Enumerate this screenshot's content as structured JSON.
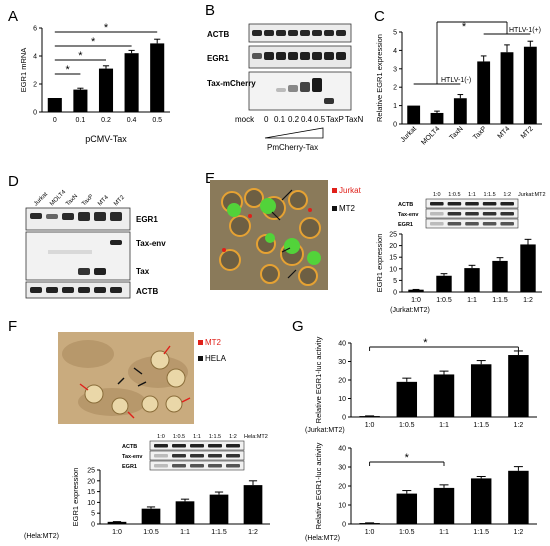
{
  "figure": {
    "panel_labels": [
      "A",
      "B",
      "C",
      "D",
      "E",
      "F",
      "G"
    ],
    "significance_marker": "*"
  },
  "panel_b": {
    "blot_rows": [
      "ACTB",
      "EGR1",
      "Tax-mCherry"
    ],
    "lanes": [
      "mock",
      "0",
      "0.1",
      "0.2",
      "0.4",
      "0.5",
      "TaxP",
      "TaxN"
    ],
    "xlabel": "PmCherry-Tax"
  },
  "panel_d": {
    "lanes": [
      "Jurkat",
      "MOLT4",
      "TaxN",
      "TaxP",
      "MT4",
      "MT2"
    ],
    "blot_rows": [
      "EGR1",
      "Tax-env",
      "Tax",
      "ACTB"
    ]
  },
  "panel_e": {
    "legend": [
      {
        "label": "Jurkat",
        "color": "#e0201a"
      },
      {
        "label": "MT2",
        "color": "#111111"
      }
    ],
    "inset_header": [
      "1:0",
      "1:0.5",
      "1:1",
      "1:1.5",
      "1:2",
      "Jurkat:MT2"
    ],
    "inset_rows": [
      "ACTB",
      "Tax-env",
      "EGR1"
    ]
  },
  "panel_f": {
    "legend": [
      {
        "label": "MT2",
        "color": "#e0201a"
      },
      {
        "label": "HELA",
        "color": "#111111"
      }
    ],
    "inset_header": [
      "1:0",
      "1:0.5",
      "1:1",
      "1:1.5",
      "1:2",
      "Hela:MT2"
    ],
    "inset_rows": [
      "ACTB",
      "Tax-env",
      "EGR1"
    ]
  },
  "chart_data": [
    {
      "panel": "A",
      "type": "bar",
      "categories": [
        "0",
        "0.1",
        "0.2",
        "0.4",
        "0.5"
      ],
      "values": [
        1.0,
        1.6,
        3.1,
        4.2,
        4.9
      ],
      "errors": [
        0.05,
        0.1,
        0.2,
        0.2,
        0.3
      ],
      "xlabel": "pCMV-Tax",
      "ylabel": "EGR1 mRNA",
      "ylim": [
        0,
        6
      ],
      "yticks": [
        0,
        2,
        4,
        6
      ],
      "grid": false
    },
    {
      "panel": "C",
      "type": "bar",
      "categories": [
        "Jurkat",
        "MOLT4",
        "TaxN",
        "TaxP",
        "MT4",
        "MT2"
      ],
      "values": [
        1.0,
        0.6,
        1.4,
        3.4,
        3.9,
        4.2
      ],
      "errors": [
        0.05,
        0.1,
        0.2,
        0.3,
        0.4,
        0.3
      ],
      "ylabel": "Relative EGR1 expression",
      "ylim": [
        0,
        5
      ],
      "yticks": [
        0,
        1,
        2,
        3,
        4,
        5
      ],
      "annotations": [
        "HTLV-1(-)",
        "HTLV-1(+)"
      ],
      "grid": false
    },
    {
      "panel": "E",
      "type": "bar",
      "categories": [
        "1:0",
        "1:0.5",
        "1:1",
        "1:1.5",
        "1:2"
      ],
      "values": [
        1.0,
        7.0,
        10.3,
        13.4,
        20.5
      ],
      "errors": [
        0.1,
        0.9,
        1.2,
        1.4,
        2.2
      ],
      "xlabel": "(Jurkat:MT2)",
      "ylabel": "EGR1 expression",
      "ylim": [
        0,
        25
      ],
      "yticks": [
        0,
        5,
        10,
        15,
        20,
        25
      ],
      "grid": false
    },
    {
      "panel": "F",
      "type": "bar",
      "categories": [
        "1:0",
        "1:0.5",
        "1:1",
        "1:1.5",
        "1:2"
      ],
      "values": [
        1.0,
        7.1,
        10.5,
        13.6,
        18.0
      ],
      "errors": [
        0.1,
        0.8,
        1.0,
        1.2,
        2.0
      ],
      "xlabel": "(Hela:MT2)",
      "ylabel": "EGR1 expression",
      "ylim": [
        0,
        25
      ],
      "yticks": [
        0,
        5,
        10,
        15,
        20,
        25
      ],
      "grid": false
    },
    {
      "panel": "G1",
      "type": "bar",
      "categories": [
        "1:0",
        "1:0.5",
        "1:1",
        "1:1.5",
        "1:2"
      ],
      "values": [
        0.5,
        19.0,
        23.0,
        28.5,
        33.5
      ],
      "errors": [
        0.1,
        2.0,
        1.8,
        2.0,
        2.2
      ],
      "xlabel": "(Jurkat:MT2)",
      "ylabel": "Relative EGR1-luc activity",
      "ylim": [
        0,
        40
      ],
      "yticks": [
        0,
        10,
        20,
        30,
        40
      ],
      "grid": false
    },
    {
      "panel": "G2",
      "type": "bar",
      "categories": [
        "1:0",
        "1:0.5",
        "1:1",
        "1:1.5",
        "1:2"
      ],
      "values": [
        0.5,
        16.0,
        19.0,
        24.0,
        28.0
      ],
      "errors": [
        0.1,
        1.6,
        1.6,
        1.0,
        2.2
      ],
      "xlabel": "(Hela:MT2)",
      "ylabel": "Relative EGR1-luc activity",
      "ylim": [
        0,
        40
      ],
      "yticks": [
        0,
        10,
        20,
        30,
        40
      ],
      "grid": false
    }
  ]
}
